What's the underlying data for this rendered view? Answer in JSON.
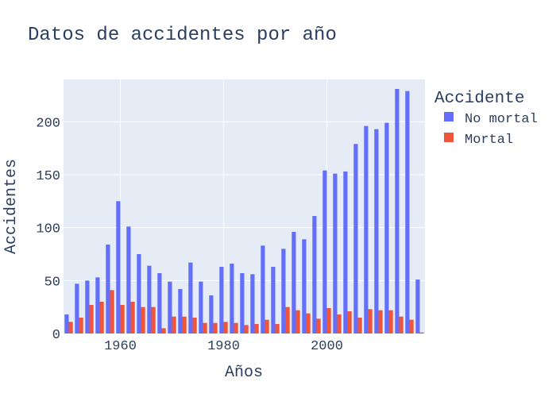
{
  "chart_data": {
    "type": "bar",
    "title": "Datos de accidentes por año",
    "xlabel": "Años",
    "ylabel": "Accidentes",
    "legend_title": "Accidente",
    "legend_position": "top-right",
    "grid": true,
    "xlim": [
      1949,
      2019
    ],
    "ylim": [
      0,
      240
    ],
    "xticks": [
      1960,
      1980,
      2000
    ],
    "yticks": [
      0,
      50,
      100,
      150,
      200
    ],
    "x": [
      1950,
      1952,
      1954,
      1956,
      1958,
      1960,
      1962,
      1964,
      1966,
      1968,
      1970,
      1972,
      1974,
      1976,
      1978,
      1980,
      1982,
      1984,
      1986,
      1988,
      1990,
      1992,
      1994,
      1996,
      1998,
      2000,
      2002,
      2004,
      2006,
      2008,
      2010,
      2012,
      2014,
      2016,
      2018
    ],
    "series": [
      {
        "name": "No mortal",
        "color": "#636efa",
        "values": [
          18,
          47,
          50,
          53,
          84,
          125,
          101,
          75,
          64,
          57,
          49,
          42,
          67,
          49,
          36,
          63,
          66,
          57,
          56,
          83,
          63,
          80,
          96,
          89,
          111,
          154,
          151,
          153,
          179,
          196,
          193,
          199,
          231,
          229,
          51
        ]
      },
      {
        "name": "Mortal",
        "color": "#ef553b",
        "values": [
          11,
          15,
          27,
          30,
          41,
          27,
          30,
          25,
          25,
          5,
          16,
          16,
          15,
          10,
          10,
          11,
          10,
          8,
          9,
          13,
          9,
          25,
          22,
          19,
          14,
          24,
          18,
          21,
          15,
          23,
          22,
          22,
          16,
          13,
          1
        ]
      }
    ]
  }
}
